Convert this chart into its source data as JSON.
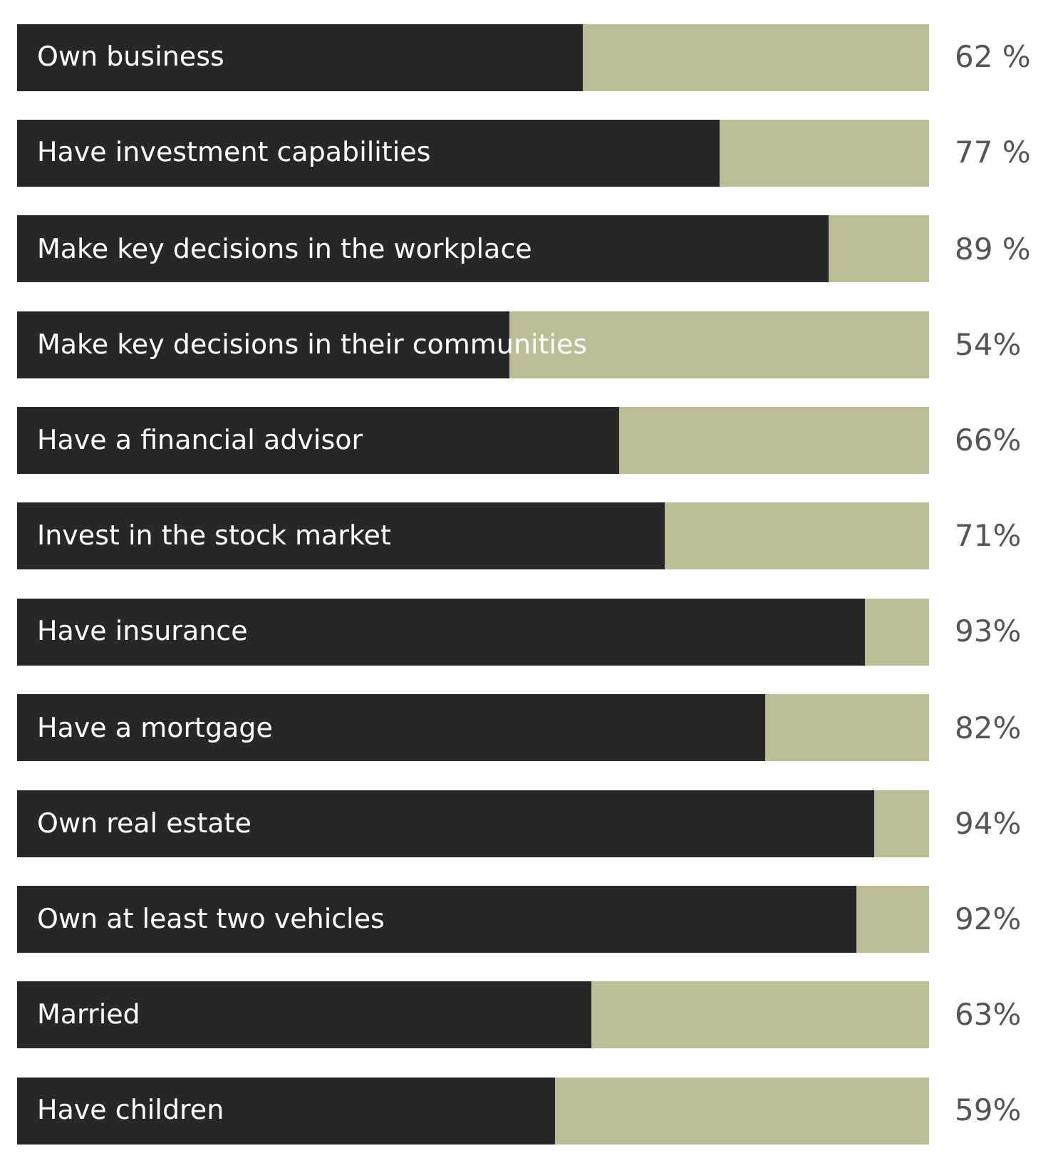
{
  "chart_data": {
    "type": "bar",
    "orientation": "horizontal",
    "stacked": true,
    "xlim": [
      0,
      100
    ],
    "categories": [
      "Own business",
      "Have investment capabilities",
      "Make key decisions in the workplace",
      "Make key decisions in their communities",
      "Have a financial advisor",
      "Invest in the stock market",
      "Have insurance",
      "Have a mortgage",
      "Own real estate",
      "Own at least two vehicles",
      "Married",
      "Have children"
    ],
    "series": [
      {
        "color": "#272727",
        "values": [
          62,
          77,
          89,
          54,
          66,
          71,
          93,
          82,
          94,
          92,
          63,
          59
        ],
        "value_labels": [
          "62 %",
          "77 %",
          "89 %",
          "54%",
          "66%",
          "71%",
          "93%",
          "82%",
          "94%",
          "92%",
          "63%",
          "59%"
        ]
      },
      {
        "color": "#bebe96",
        "values": [
          38,
          23,
          11,
          46,
          34,
          29,
          7,
          18,
          6,
          8,
          37,
          41
        ]
      }
    ]
  }
}
